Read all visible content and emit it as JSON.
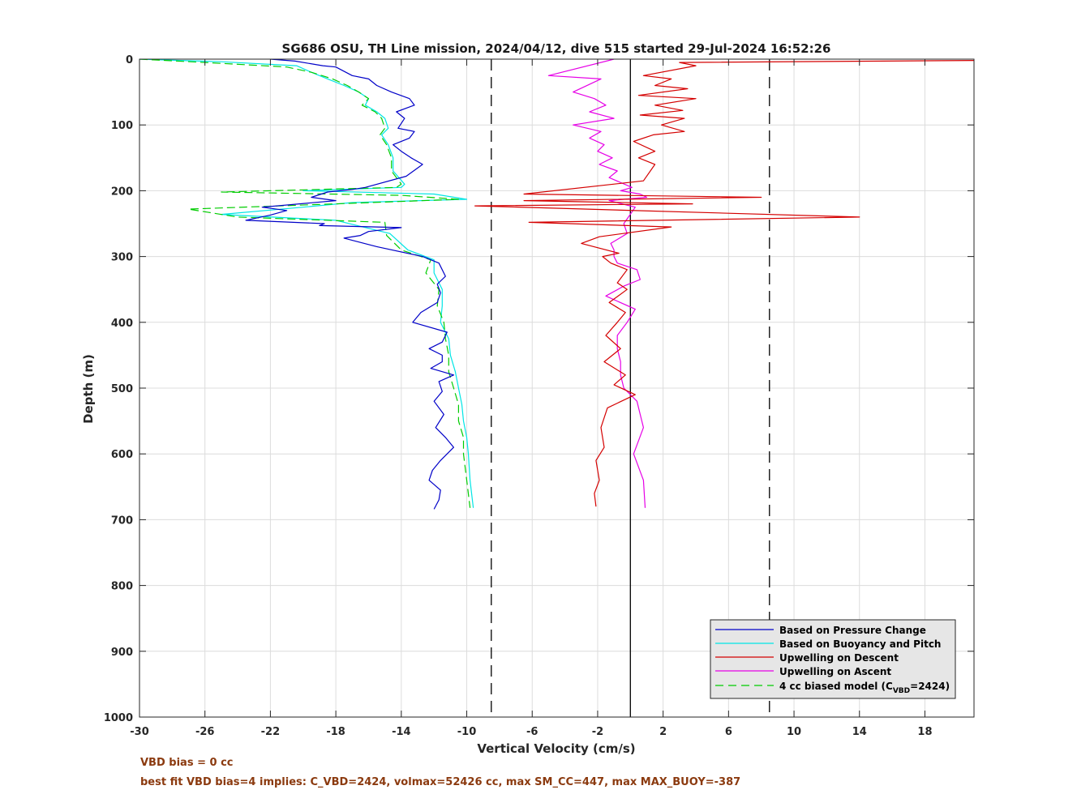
{
  "chart_data": {
    "type": "line",
    "title": "SG686 OSU, TH Line mission, 2024/04/12, dive 515 started 29-Jul-2024 16:52:26",
    "xlabel": "Vertical Velocity (cm/s)",
    "ylabel": "Depth (m)",
    "xlim": [
      -30,
      21
    ],
    "ylim": [
      0,
      1000
    ],
    "y_reversed": true,
    "xticks": [
      -30,
      -26,
      -22,
      -18,
      -14,
      -10,
      -6,
      -2,
      2,
      6,
      10,
      14,
      18
    ],
    "yticks": [
      0,
      100,
      200,
      300,
      400,
      500,
      600,
      700,
      800,
      900,
      1000
    ],
    "grid": true,
    "legend_position": "bottom-right",
    "reference_lines": [
      {
        "x": 0,
        "style": "solid",
        "color": "#000000"
      },
      {
        "x": -8.5,
        "style": "dashed",
        "color": "#000000"
      },
      {
        "x": 8.5,
        "style": "dashed",
        "color": "#000000"
      }
    ],
    "series": [
      {
        "name": "Based on Pressure Change",
        "color": "#0000c8",
        "style": "solid",
        "x": [
          -22,
          -20.5,
          -18.8,
          -18,
          -17,
          -16,
          -15.5,
          -14.6,
          -13.5,
          -13.2,
          -14.3,
          -13.8,
          -14.2,
          -13.2,
          -13.5,
          -14.5,
          -14,
          -13.4,
          -12.7,
          -13.7,
          -16.2,
          -17,
          -18.5,
          -19.5,
          -18,
          -22.5,
          -21,
          -22,
          -23.5,
          -18.7,
          -19,
          -14,
          -16,
          -16.5,
          -17.5,
          -15.5,
          -12.7,
          -11.7,
          -11.3,
          -11.8,
          -11.6,
          -11.8,
          -12.8,
          -13.3,
          -11.2,
          -11.5,
          -12.3,
          -11.5,
          -11.5,
          -12.2,
          -10.8,
          -11.7,
          -11.5,
          -12,
          -11.4,
          -11.9,
          -11.3,
          -10.8,
          -11.6,
          -12.1,
          -12.3,
          -11.6,
          -11.7,
          -12
        ],
        "y": [
          0,
          3,
          10,
          12,
          25,
          30,
          40,
          50,
          60,
          70,
          80,
          90,
          105,
          110,
          120,
          130,
          140,
          150,
          160,
          178,
          195,
          198,
          202,
          210,
          215,
          225,
          230,
          237,
          245,
          250,
          253,
          256,
          262,
          268,
          272,
          285,
          300,
          310,
          330,
          342,
          355,
          370,
          385,
          400,
          415,
          430,
          440,
          450,
          460,
          470,
          480,
          490,
          505,
          520,
          540,
          560,
          575,
          590,
          610,
          625,
          640,
          655,
          670,
          684
        ]
      },
      {
        "name": "Based on Buoyancy and Pitch",
        "color": "#00e5e5",
        "style": "solid",
        "x": [
          -30,
          -25,
          -20.4,
          -19.5,
          -18.5,
          -17.5,
          -16.6,
          -16,
          -16.2,
          -15.5,
          -15,
          -14.8,
          -15.2,
          -14.8,
          -14.5,
          -14.5,
          -13.8,
          -14,
          -20,
          -12,
          -10,
          -17,
          -20,
          -25,
          -18,
          -14.7,
          -13.6,
          -12,
          -12,
          -11.5,
          -11.5,
          -11.6,
          -11.1,
          -11.0,
          -10.7,
          -10.5,
          -10.3,
          -10.2,
          -10.0,
          -9.9,
          -9.8,
          -9.6
        ],
        "y": [
          0,
          4,
          10,
          20,
          30,
          40,
          50,
          60,
          70,
          80,
          90,
          105,
          115,
          130,
          150,
          170,
          190,
          195,
          200,
          205,
          213,
          218,
          225,
          236,
          245,
          265,
          290,
          305,
          325,
          350,
          375,
          400,
          425,
          450,
          475,
          500,
          525,
          550,
          575,
          600,
          640,
          682
        ]
      },
      {
        "name": "Upwelling on Descent",
        "color": "#d40000",
        "style": "solid",
        "x": [
          21,
          3,
          4,
          0.8,
          2.5,
          1.5,
          3.5,
          0.5,
          4,
          1.5,
          3.2,
          0.6,
          3.3,
          1.9,
          3.3,
          1.4,
          0.2,
          1.5,
          0.5,
          1.5,
          0.8,
          -6.5,
          8,
          -6.5,
          3.8,
          -9.5,
          14,
          -6.2,
          2.5,
          -1.9,
          -3,
          -0.7,
          -1.7,
          -1.2,
          -0.2,
          -0.8,
          -0.2,
          -1.3,
          -0.3,
          -0.8,
          -1.5,
          -0.6,
          -1.6,
          -0.3,
          -1,
          0.3,
          -1.4,
          -1.8,
          -1.6,
          -2.1,
          -1.9,
          -2.2,
          -2.1
        ],
        "y": [
          2,
          5,
          10,
          25,
          30,
          40,
          45,
          55,
          60,
          70,
          78,
          85,
          90,
          100,
          110,
          115,
          125,
          140,
          150,
          160,
          185,
          205,
          210,
          215,
          220,
          223,
          240,
          248,
          255,
          270,
          280,
          295,
          300,
          310,
          320,
          340,
          350,
          370,
          385,
          400,
          420,
          440,
          460,
          480,
          495,
          510,
          530,
          560,
          590,
          610,
          640,
          660,
          680
        ]
      },
      {
        "name": "Upwelling on Ascent",
        "color": "#e600e6",
        "style": "solid",
        "x": [
          -1,
          -5,
          -1.8,
          -3.5,
          -2.2,
          -1.5,
          -2.5,
          -1,
          -3.5,
          -1.8,
          -2.5,
          -1.6,
          -2,
          -1.1,
          -1.9,
          -0.8,
          -1.3,
          0.1,
          -0.6,
          0.6,
          1,
          -1.3,
          0.3,
          -0.4,
          -0.2,
          -1.2,
          -1,
          -1,
          -0.8,
          0.4,
          0.6,
          -0.4,
          -1.5,
          0.3,
          -0.2,
          -0.8,
          -0.8,
          -0.6,
          -0.6,
          -0.4,
          0.4,
          0.6,
          0.8,
          0.2,
          0.8,
          0.9
        ],
        "y": [
          0,
          25,
          30,
          50,
          60,
          70,
          80,
          90,
          100,
          110,
          120,
          130,
          140,
          150,
          160,
          170,
          180,
          195,
          200,
          205,
          210,
          215,
          225,
          250,
          265,
          280,
          290,
          300,
          310,
          320,
          335,
          345,
          360,
          380,
          400,
          420,
          440,
          460,
          480,
          500,
          520,
          540,
          560,
          600,
          640,
          682
        ]
      },
      {
        "name": "4 cc biased model (C VBD=2424)",
        "color": "#00cc00",
        "style": "dashed",
        "x": [
          -30,
          -26,
          -21,
          -19.5,
          -18.2,
          -17.3,
          -16.6,
          -16,
          -16.4,
          -15.6,
          -15.2,
          -15,
          -15.3,
          -14.9,
          -14.6,
          -14.6,
          -14,
          -14.3,
          -25,
          -14,
          -10.5,
          -18,
          -27,
          -24,
          -15,
          -14.9,
          -14,
          -12.2,
          -12.5,
          -11.7,
          -11.8,
          -11.4,
          -11.3,
          -11.1,
          -11.1,
          -10.8,
          -10.5,
          -10.5,
          -10.2,
          -10.2,
          -10.0,
          -9.8
        ],
        "y": [
          0,
          5,
          12,
          20,
          30,
          40,
          50,
          60,
          70,
          80,
          90,
          105,
          115,
          130,
          150,
          170,
          190,
          195,
          202,
          207,
          213,
          220,
          228,
          240,
          248,
          268,
          290,
          305,
          325,
          350,
          375,
          400,
          425,
          450,
          475,
          500,
          525,
          550,
          575,
          600,
          640,
          682
        ]
      }
    ],
    "legend": [
      {
        "label": "Based on Pressure Change",
        "color": "#0000c8",
        "style": "solid"
      },
      {
        "label": "Based on Buoyancy and Pitch",
        "color": "#00e5e5",
        "style": "solid"
      },
      {
        "label": "Upwelling on Descent",
        "color": "#d40000",
        "style": "solid"
      },
      {
        "label": "Upwelling on Ascent",
        "color": "#e600e6",
        "style": "solid"
      },
      {
        "label_main": "4 cc biased model (C",
        "label_sub": "VBD",
        "label_tail": "=2424)",
        "color": "#00cc00",
        "style": "dashed"
      }
    ]
  },
  "notes": {
    "line1": "VBD bias = 0 cc",
    "line2": "best fit VBD bias=4 implies: C_VBD=2424, volmax=52426 cc, max SM_CC=447, max MAX_BUOY=-387"
  }
}
